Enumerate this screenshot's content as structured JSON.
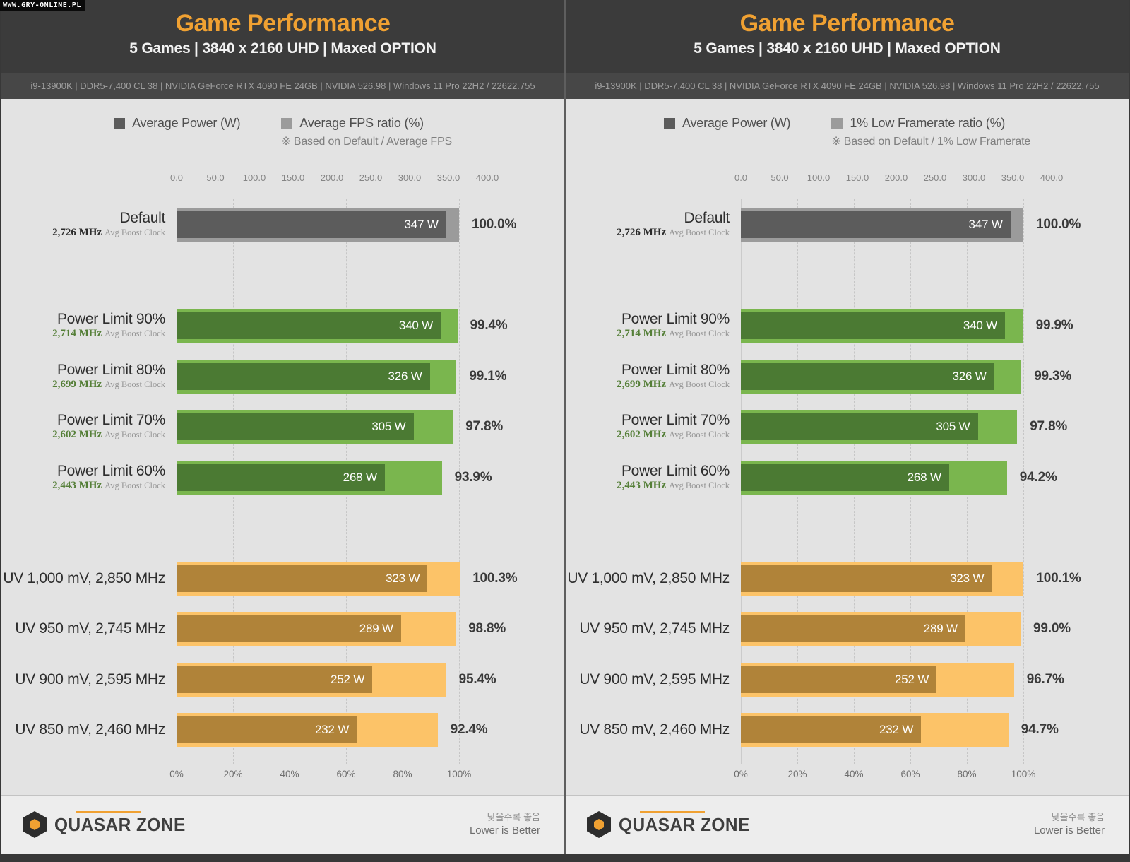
{
  "watermark": "WWW.GRY-ONLINE.PL",
  "colors": {
    "accent_orange": "#f0a132",
    "header_bg": "#3b3b3b",
    "specbar_bg": "#474747",
    "body_bg": "#e3e3e3",
    "footer_bg": "#ededed",
    "bottom_strip": "#383838",
    "palettes": {
      "gray": {
        "power": "#5c5c5c",
        "ratio": "#9b9b9b",
        "clock": "#2b2b2b"
      },
      "green": {
        "power": "#4b7a33",
        "ratio": "#7ab64e",
        "clock": "#557f38"
      },
      "orange": {
        "power": "#b08339",
        "ratio": "#fcc368",
        "clock": "#8a6a2a"
      }
    }
  },
  "chart_data": [
    {
      "type": "bar",
      "title": "Game Performance",
      "subtitle": "5 Games  |  3840 x 2160 UHD  |  Maxed OPTION",
      "system_specs": "i9-13900K  |  DDR5-7,400 CL 38  |  NVIDIA GeForce RTX 4090 FE 24GB  |  NVIDIA 526.98  |  Windows 11 Pro 22H2 / 22622.755",
      "legend_power": "Average Power (W)",
      "legend_ratio": "Average FPS ratio (%)",
      "legend_note": "※ Based on Default / Average FPS",
      "axes": {
        "top": {
          "unit": "W",
          "min": 0,
          "max": 400,
          "tick_labels": [
            "0.0",
            "50.0",
            "100.0",
            "150.0",
            "200.0",
            "250.0",
            "300.0",
            "350.0",
            "400.0"
          ]
        },
        "bottom": {
          "unit": "%",
          "min": 0,
          "max": 100,
          "tick_labels": [
            "0%",
            "20%",
            "40%",
            "60%",
            "80%",
            "100%"
          ]
        }
      },
      "rows": [
        {
          "slot": 0,
          "label": "Default",
          "clock": "2,726 MHz",
          "clock_suffix": "Avg Boost Clock",
          "power_w": 347,
          "power_label": "347 W",
          "ratio_pct": 100.0,
          "ratio_label": "100.0%",
          "palette": "gray"
        },
        {
          "slot": 2,
          "label": "Power Limit 90%",
          "clock": "2,714 MHz",
          "clock_suffix": "Avg Boost Clock",
          "power_w": 340,
          "power_label": "340 W",
          "ratio_pct": 99.4,
          "ratio_label": "99.4%",
          "palette": "green"
        },
        {
          "slot": 3,
          "label": "Power Limit 80%",
          "clock": "2,699 MHz",
          "clock_suffix": "Avg Boost Clock",
          "power_w": 326,
          "power_label": "326 W",
          "ratio_pct": 99.1,
          "ratio_label": "99.1%",
          "palette": "green"
        },
        {
          "slot": 4,
          "label": "Power Limit 70%",
          "clock": "2,602 MHz",
          "clock_suffix": "Avg Boost Clock",
          "power_w": 305,
          "power_label": "305 W",
          "ratio_pct": 97.8,
          "ratio_label": "97.8%",
          "palette": "green"
        },
        {
          "slot": 5,
          "label": "Power Limit 60%",
          "clock": "2,443 MHz",
          "clock_suffix": "Avg Boost Clock",
          "power_w": 268,
          "power_label": "268 W",
          "ratio_pct": 93.9,
          "ratio_label": "93.9%",
          "palette": "green"
        },
        {
          "slot": 7,
          "label": "UV 1,000 mV, 2,850 MHz",
          "clock": null,
          "clock_suffix": null,
          "power_w": 323,
          "power_label": "323 W",
          "ratio_pct": 100.3,
          "ratio_label": "100.3%",
          "palette": "orange"
        },
        {
          "slot": 8,
          "label": "UV 950 mV, 2,745 MHz",
          "clock": null,
          "clock_suffix": null,
          "power_w": 289,
          "power_label": "289 W",
          "ratio_pct": 98.8,
          "ratio_label": "98.8%",
          "palette": "orange"
        },
        {
          "slot": 9,
          "label": "UV 900 mV, 2,595 MHz",
          "clock": null,
          "clock_suffix": null,
          "power_w": 252,
          "power_label": "252 W",
          "ratio_pct": 95.4,
          "ratio_label": "95.4%",
          "palette": "orange"
        },
        {
          "slot": 10,
          "label": "UV 850 mV, 2,460 MHz",
          "clock": null,
          "clock_suffix": null,
          "power_w": 232,
          "power_label": "232 W",
          "ratio_pct": 92.4,
          "ratio_label": "92.4%",
          "palette": "orange"
        }
      ],
      "footer_brand": "QUASAR ZONE",
      "note_kr": "낮을수록 좋음",
      "note_en": "Lower is Better"
    },
    {
      "type": "bar",
      "title": "Game Performance",
      "subtitle": "5 Games  |  3840 x 2160 UHD  |  Maxed OPTION",
      "system_specs": "i9-13900K  |  DDR5-7,400 CL 38  |  NVIDIA GeForce RTX 4090 FE 24GB  |  NVIDIA 526.98  |  Windows 11 Pro 22H2 / 22622.755",
      "legend_power": "Average Power (W)",
      "legend_ratio": "1% Low Framerate ratio (%)",
      "legend_note": "※ Based on Default / 1% Low Framerate",
      "axes": {
        "top": {
          "unit": "W",
          "min": 0,
          "max": 400,
          "tick_labels": [
            "0.0",
            "50.0",
            "100.0",
            "150.0",
            "200.0",
            "250.0",
            "300.0",
            "350.0",
            "400.0"
          ]
        },
        "bottom": {
          "unit": "%",
          "min": 0,
          "max": 100,
          "tick_labels": [
            "0%",
            "20%",
            "40%",
            "60%",
            "80%",
            "100%"
          ]
        }
      },
      "rows": [
        {
          "slot": 0,
          "label": "Default",
          "clock": "2,726 MHz",
          "clock_suffix": "Avg Boost Clock",
          "power_w": 347,
          "power_label": "347 W",
          "ratio_pct": 100.0,
          "ratio_label": "100.0%",
          "palette": "gray"
        },
        {
          "slot": 2,
          "label": "Power Limit 90%",
          "clock": "2,714 MHz",
          "clock_suffix": "Avg Boost Clock",
          "power_w": 340,
          "power_label": "340 W",
          "ratio_pct": 99.9,
          "ratio_label": "99.9%",
          "palette": "green"
        },
        {
          "slot": 3,
          "label": "Power Limit 80%",
          "clock": "2,699 MHz",
          "clock_suffix": "Avg Boost Clock",
          "power_w": 326,
          "power_label": "326 W",
          "ratio_pct": 99.3,
          "ratio_label": "99.3%",
          "palette": "green"
        },
        {
          "slot": 4,
          "label": "Power Limit 70%",
          "clock": "2,602 MHz",
          "clock_suffix": "Avg Boost Clock",
          "power_w": 305,
          "power_label": "305 W",
          "ratio_pct": 97.8,
          "ratio_label": "97.8%",
          "palette": "green"
        },
        {
          "slot": 5,
          "label": "Power Limit 60%",
          "clock": "2,443 MHz",
          "clock_suffix": "Avg Boost Clock",
          "power_w": 268,
          "power_label": "268 W",
          "ratio_pct": 94.2,
          "ratio_label": "94.2%",
          "palette": "green"
        },
        {
          "slot": 7,
          "label": "UV 1,000 mV, 2,850 MHz",
          "clock": null,
          "clock_suffix": null,
          "power_w": 323,
          "power_label": "323 W",
          "ratio_pct": 100.1,
          "ratio_label": "100.1%",
          "palette": "orange"
        },
        {
          "slot": 8,
          "label": "UV 950 mV, 2,745 MHz",
          "clock": null,
          "clock_suffix": null,
          "power_w": 289,
          "power_label": "289 W",
          "ratio_pct": 99.0,
          "ratio_label": "99.0%",
          "palette": "orange"
        },
        {
          "slot": 9,
          "label": "UV 900 mV, 2,595 MHz",
          "clock": null,
          "clock_suffix": null,
          "power_w": 252,
          "power_label": "252 W",
          "ratio_pct": 96.7,
          "ratio_label": "96.7%",
          "palette": "orange"
        },
        {
          "slot": 10,
          "label": "UV 850 mV, 2,460 MHz",
          "clock": null,
          "clock_suffix": null,
          "power_w": 232,
          "power_label": "232 W",
          "ratio_pct": 94.7,
          "ratio_label": "94.7%",
          "palette": "orange"
        }
      ],
      "footer_brand": "QUASAR ZONE",
      "note_kr": "낮을수록 좋음",
      "note_en": "Lower is Better"
    }
  ]
}
